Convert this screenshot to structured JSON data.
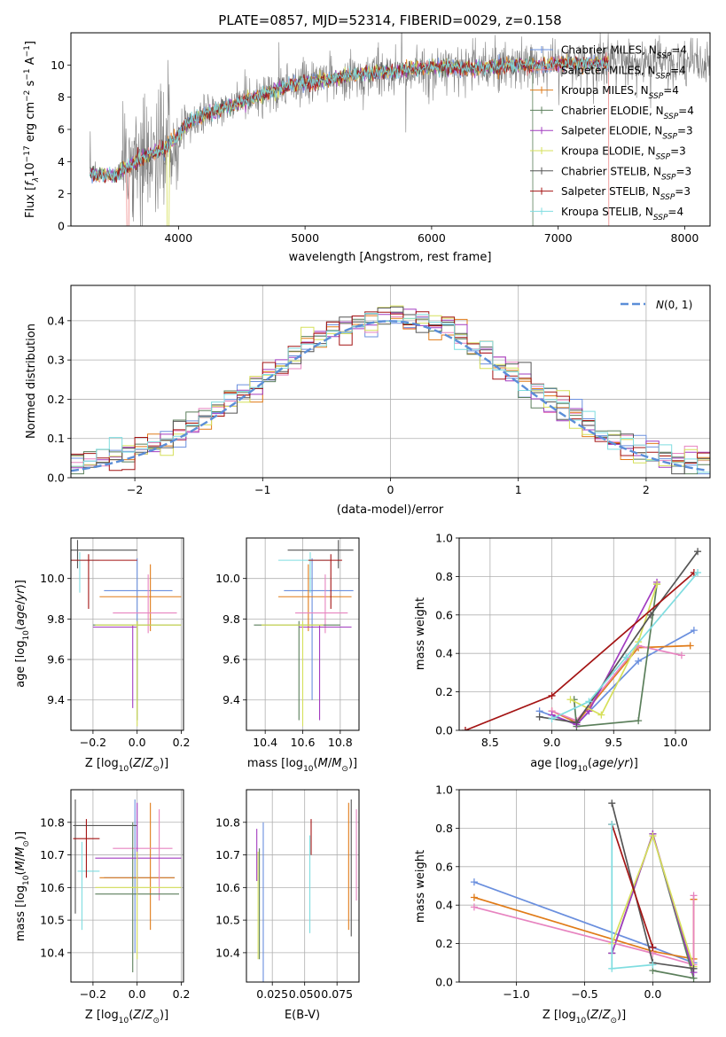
{
  "title": "PLATE=0857, MJD=52314, FIBERID=0029, z=0.158",
  "colors": {
    "Chabrier MILES": "#6a8fde",
    "Salpeter MILES": "#f08a8a",
    "Kroupa MILES": "#e07b18",
    "Chabrier ELODIE": "#5b7f5b",
    "Salpeter ELODIE": "#a23cc0",
    "Kroupa ELODIE": "#d6e05a",
    "Chabrier STELIB": "#555555",
    "Salpeter STELIB": "#a41414",
    "Kroupa STELIB": "#7fdde0",
    "MILES pink": "#e784c0",
    "data": "#808080",
    "normal": "#5b8ed8"
  },
  "chart_data": [
    {
      "id": "spectrum",
      "type": "line",
      "title": "PLATE=0857, MJD=52314, FIBERID=0029, z=0.158",
      "xlabel": "wavelength [Angstrom, rest frame]",
      "ylabel": "Flux [f_λ 10^-17 erg cm^-2 s^-1 A^-1]",
      "xlim": [
        3150,
        8200
      ],
      "ylim": [
        0,
        12
      ],
      "xticks": [
        4000,
        5000,
        6000,
        7000,
        8000
      ],
      "yticks": [
        0,
        2,
        4,
        6,
        8,
        10
      ],
      "continuum": [
        [
          3300,
          3.3
        ],
        [
          3500,
          3.1
        ],
        [
          3700,
          4.2
        ],
        [
          3900,
          4.8
        ],
        [
          4100,
          6.6
        ],
        [
          4300,
          7.2
        ],
        [
          4500,
          7.7
        ],
        [
          4700,
          8.3
        ],
        [
          4900,
          8.8
        ],
        [
          5100,
          9.0
        ],
        [
          5300,
          9.3
        ],
        [
          5500,
          9.5
        ],
        [
          5700,
          9.6
        ],
        [
          5900,
          9.8
        ],
        [
          6100,
          9.9
        ],
        [
          6300,
          9.8
        ],
        [
          6500,
          9.9
        ],
        [
          6700,
          10.0
        ],
        [
          6900,
          10.0
        ],
        [
          7100,
          10.1
        ],
        [
          7300,
          10.1
        ],
        [
          7450,
          10.2
        ]
      ],
      "series": [
        {
          "name": "Chabrier MILES",
          "nssp": "4"
        },
        {
          "name": "Salpeter MILES",
          "nssp": "4"
        },
        {
          "name": "Kroupa MILES",
          "nssp": "4"
        },
        {
          "name": "Chabrier ELODIE",
          "nssp": "4"
        },
        {
          "name": "Salpeter ELODIE",
          "nssp": "3"
        },
        {
          "name": "Kroupa ELODIE",
          "nssp": "3"
        },
        {
          "name": "Chabrier STELIB",
          "nssp": "3"
        },
        {
          "name": "Salpeter STELIB",
          "nssp": "3"
        },
        {
          "name": "Kroupa STELIB",
          "nssp": "4"
        }
      ],
      "legend": "upper-right"
    },
    {
      "id": "residual-hist",
      "type": "histogram",
      "xlabel": "(data-model)/error",
      "ylabel": "Normed distribution",
      "xlim": [
        -2.5,
        2.5
      ],
      "ylim": [
        0,
        0.49
      ],
      "xticks": [
        -2,
        -1,
        0,
        1,
        2
      ],
      "yticks": [
        0.0,
        0.1,
        0.2,
        0.3,
        0.4
      ],
      "bin_width": 0.1,
      "legend_label": "N(0,1)",
      "grid": true
    },
    {
      "id": "age-vs-Z",
      "type": "errorbar",
      "xlabel": "Z [log10(Z/Z⊙)]",
      "ylabel": "age [log10(age/yr)]",
      "xlim": [
        -0.3,
        0.21
      ],
      "ylim": [
        9.25,
        10.2
      ],
      "xticks": [
        -0.2,
        0.0,
        0.2
      ],
      "yticks": [
        9.4,
        9.6,
        9.8,
        10.0
      ],
      "points": [
        {
          "c": "Chabrier MILES",
          "x": 0.0,
          "xe": [
            -0.15,
            0.16
          ],
          "y": 9.94,
          "ye": [
            9.4,
            10.1
          ]
        },
        {
          "c": "Kroupa MILES",
          "x": 0.06,
          "xe": [
            -0.17,
            0.2
          ],
          "y": 9.91,
          "ye": [
            9.74,
            10.07
          ]
        },
        {
          "c": "MILES pink",
          "x": 0.05,
          "xe": [
            -0.11,
            0.18
          ],
          "y": 9.83,
          "ye": [
            9.73,
            10.02
          ]
        },
        {
          "c": "Kroupa STELIB",
          "x": -0.26,
          "xe": [
            -0.3,
            -0.17
          ],
          "y": 10.09,
          "ye": [
            9.93,
            10.13
          ]
        },
        {
          "c": "Chabrier STELIB",
          "x": -0.27,
          "xe": [
            -0.3,
            0.0
          ],
          "y": 10.14,
          "ye": [
            10.05,
            10.19
          ]
        },
        {
          "c": "Salpeter STELIB",
          "x": -0.22,
          "xe": [
            -0.3,
            0.0
          ],
          "y": 10.09,
          "ye": [
            9.85,
            10.12
          ]
        },
        {
          "c": "Chabrier ELODIE",
          "x": 0.0,
          "xe": [
            -0.2,
            0.2
          ],
          "y": 9.77,
          "ye": [
            9.3,
            9.79
          ]
        },
        {
          "c": "Salpeter ELODIE",
          "x": -0.02,
          "xe": [
            -0.2,
            0.0
          ],
          "y": 9.76,
          "ye": [
            9.36,
            9.77
          ]
        },
        {
          "c": "Kroupa ELODIE",
          "x": 0.0,
          "xe": [
            -0.19,
            0.2
          ],
          "y": 9.77,
          "ye": [
            9.27,
            9.79
          ]
        }
      ]
    },
    {
      "id": "age-vs-mass",
      "type": "errorbar",
      "xlabel": "mass [log10(M/M⊙)]",
      "xlim": [
        10.3,
        10.9
      ],
      "ylim": [
        9.25,
        10.2
      ],
      "xticks": [
        10.4,
        10.6,
        10.8
      ],
      "yticks": [
        9.4,
        9.6,
        9.8,
        10.0
      ],
      "points": [
        {
          "c": "Chabrier MILES",
          "x": 10.65,
          "xe": [
            10.5,
            10.87
          ],
          "y": 9.94,
          "ye": [
            9.4,
            10.1
          ]
        },
        {
          "c": "Kroupa MILES",
          "x": 10.63,
          "xe": [
            10.47,
            10.86
          ],
          "y": 9.91,
          "ye": [
            9.74,
            10.07
          ]
        },
        {
          "c": "MILES pink",
          "x": 10.72,
          "xe": [
            10.56,
            10.84
          ],
          "y": 9.83,
          "ye": [
            9.73,
            10.02
          ]
        },
        {
          "c": "Kroupa STELIB",
          "x": 10.64,
          "xe": [
            10.47,
            10.74
          ],
          "y": 10.09,
          "ye": [
            9.93,
            10.13
          ]
        },
        {
          "c": "Chabrier STELIB",
          "x": 10.79,
          "xe": [
            10.52,
            10.87
          ],
          "y": 10.14,
          "ye": [
            10.05,
            10.19
          ]
        },
        {
          "c": "Salpeter STELIB",
          "x": 10.75,
          "xe": [
            10.63,
            10.81
          ],
          "y": 10.09,
          "ye": [
            9.85,
            10.12
          ]
        },
        {
          "c": "Chabrier ELODIE",
          "x": 10.58,
          "xe": [
            10.34,
            10.8
          ],
          "y": 9.77,
          "ye": [
            9.3,
            9.79
          ]
        },
        {
          "c": "Salpeter ELODIE",
          "x": 10.69,
          "xe": [
            10.58,
            10.86
          ],
          "y": 9.76,
          "ye": [
            9.3,
            9.77
          ]
        },
        {
          "c": "Kroupa ELODIE",
          "x": 10.6,
          "xe": [
            10.38,
            10.71
          ],
          "y": 9.77,
          "ye": [
            9.27,
            9.79
          ]
        }
      ]
    },
    {
      "id": "massweight-vs-age",
      "type": "line",
      "xlabel": "age [log10(age/yr)]",
      "ylabel": "mass weight",
      "xlim": [
        8.25,
        10.28
      ],
      "ylim": [
        0,
        1.0
      ],
      "xticks": [
        8.5,
        9.0,
        9.5,
        10.0
      ],
      "yticks": [
        0.0,
        0.2,
        0.4,
        0.6,
        0.8,
        1.0
      ],
      "series": [
        {
          "c": "Chabrier MILES",
          "points": [
            [
              8.9,
              0.1
            ],
            [
              9.2,
              0.03
            ],
            [
              9.7,
              0.36
            ],
            [
              10.15,
              0.52
            ]
          ]
        },
        {
          "c": "Kroupa MILES",
          "points": [
            [
              9.0,
              0.1
            ],
            [
              9.2,
              0.04
            ],
            [
              9.7,
              0.43
            ],
            [
              10.12,
              0.44
            ]
          ]
        },
        {
          "c": "MILES pink",
          "points": [
            [
              9.0,
              0.1
            ],
            [
              9.2,
              0.05
            ],
            [
              9.7,
              0.44
            ],
            [
              10.05,
              0.39
            ]
          ]
        },
        {
          "c": "Chabrier ELODIE",
          "points": [
            [
              9.18,
              0.16
            ],
            [
              9.2,
              0.02
            ],
            [
              9.7,
              0.05
            ],
            [
              9.85,
              0.76
            ]
          ]
        },
        {
          "c": "Salpeter ELODIE",
          "points": [
            [
              9.0,
              0.08
            ],
            [
              9.2,
              0.03
            ],
            [
              9.3,
              0.1
            ],
            [
              9.85,
              0.77
            ]
          ]
        },
        {
          "c": "Kroupa ELODIE",
          "points": [
            [
              9.15,
              0.16
            ],
            [
              9.4,
              0.08
            ],
            [
              9.7,
              0.46
            ],
            [
              9.85,
              0.76
            ]
          ]
        },
        {
          "c": "Chabrier STELIB",
          "points": [
            [
              8.9,
              0.07
            ],
            [
              9.2,
              0.04
            ],
            [
              9.8,
              0.6
            ],
            [
              10.18,
              0.93
            ]
          ]
        },
        {
          "c": "Salpeter STELIB",
          "points": [
            [
              8.3,
              0.0
            ],
            [
              9.0,
              0.18
            ],
            [
              10.15,
              0.82
            ]
          ]
        },
        {
          "c": "Kroupa STELIB",
          "points": [
            [
              9.0,
              0.06
            ],
            [
              9.3,
              0.15
            ],
            [
              9.6,
              0.38
            ],
            [
              10.18,
              0.82
            ]
          ]
        }
      ],
      "grid": true
    },
    {
      "id": "mass-vs-Z",
      "type": "errorbar",
      "xlabel": "Z [log10(Z/Z⊙)]",
      "ylabel": "mass [log10(M/M⊙)]",
      "xlim": [
        -0.3,
        0.21
      ],
      "ylim": [
        10.31,
        10.9
      ],
      "xticks": [
        -0.2,
        0.0,
        0.2
      ],
      "yticks": [
        10.4,
        10.5,
        10.6,
        10.7,
        10.8
      ],
      "points": [
        {
          "c": "Chabrier MILES",
          "x": -0.01,
          "xe": [
            -0.15,
            0.17
          ],
          "y": 10.63,
          "ye": [
            10.4,
            10.87
          ]
        },
        {
          "c": "Kroupa MILES",
          "x": 0.06,
          "xe": [
            -0.17,
            0.17
          ],
          "y": 10.63,
          "ye": [
            10.47,
            10.86
          ]
        },
        {
          "c": "MILES pink",
          "x": 0.1,
          "xe": [
            -0.11,
            0.16
          ],
          "y": 10.72,
          "ye": [
            10.56,
            10.84
          ]
        },
        {
          "c": "Kroupa STELIB",
          "x": -0.25,
          "xe": [
            -0.27,
            -0.17
          ],
          "y": 10.65,
          "ye": [
            10.47,
            10.74
          ]
        },
        {
          "c": "Chabrier STELIB",
          "x": -0.28,
          "xe": [
            -0.29,
            0.0
          ],
          "y": 10.79,
          "ye": [
            10.52,
            10.87
          ]
        },
        {
          "c": "Salpeter STELIB",
          "x": -0.23,
          "xe": [
            -0.29,
            -0.17
          ],
          "y": 10.75,
          "ye": [
            10.63,
            10.81
          ]
        },
        {
          "c": "Chabrier ELODIE",
          "x": -0.02,
          "xe": [
            -0.19,
            0.19
          ],
          "y": 10.58,
          "ye": [
            10.34,
            10.8
          ]
        },
        {
          "c": "Salpeter ELODIE",
          "x": 0.0,
          "xe": [
            -0.19,
            0.2
          ],
          "y": 10.69,
          "ye": [
            10.58,
            10.86
          ]
        },
        {
          "c": "Kroupa ELODIE",
          "x": 0.0,
          "xe": [
            -0.19,
            0.2
          ],
          "y": 10.6,
          "ye": [
            10.38,
            10.71
          ]
        }
      ]
    },
    {
      "id": "mass-vs-ebv",
      "type": "errorbar",
      "xlabel": "E(B-V)",
      "xlim": [
        0.005,
        0.092
      ],
      "ylim": [
        10.31,
        10.9
      ],
      "xticks": [
        0.025,
        0.05,
        0.075
      ],
      "yticks": [
        10.4,
        10.5,
        10.6,
        10.7,
        10.8
      ],
      "points": [
        {
          "c": "Chabrier MILES",
          "x": 0.018,
          "y": 10.63,
          "ye": [
            10.31,
            10.8
          ]
        },
        {
          "c": "Salpeter ELODIE",
          "x": 0.013,
          "y": 10.69,
          "ye": [
            10.62,
            10.78
          ]
        },
        {
          "c": "Kroupa ELODIE",
          "x": 0.014,
          "y": 10.55,
          "ye": [
            10.38,
            10.71
          ]
        },
        {
          "c": "Chabrier ELODIE",
          "x": 0.015,
          "y": 10.55,
          "ye": [
            10.38,
            10.72
          ]
        },
        {
          "c": "Salpeter STELIB",
          "x": 0.055,
          "y": 10.75,
          "ye": [
            10.7,
            10.81
          ]
        },
        {
          "c": "Kroupa STELIB",
          "x": 0.054,
          "y": 10.62,
          "ye": [
            10.46,
            10.76
          ]
        },
        {
          "c": "Kroupa MILES",
          "x": 0.084,
          "y": 10.63,
          "ye": [
            10.47,
            10.86
          ]
        },
        {
          "c": "Chabrier STELIB",
          "x": 0.086,
          "y": 10.65,
          "ye": [
            10.45,
            10.87
          ]
        },
        {
          "c": "MILES pink",
          "x": 0.09,
          "y": 10.72,
          "ye": [
            10.56,
            10.84
          ]
        }
      ]
    },
    {
      "id": "massweight-vs-Z",
      "type": "line",
      "xlabel": "Z [log10(Z/Z⊙)]",
      "ylabel": "mass weight",
      "xlim": [
        -1.42,
        0.42
      ],
      "ylim": [
        0,
        1.0
      ],
      "xticks": [
        -1.0,
        -0.5,
        0.0
      ],
      "yticks": [
        0.0,
        0.2,
        0.4,
        0.6,
        0.8,
        1.0
      ],
      "series": [
        {
          "c": "Chabrier MILES",
          "points": [
            [
              -1.31,
              0.52
            ],
            [
              0.0,
              0.18
            ],
            [
              0.3,
              0.1
            ]
          ]
        },
        {
          "c": "Kroupa MILES",
          "points": [
            [
              -1.31,
              0.44
            ],
            [
              0.0,
              0.16
            ],
            [
              0.3,
              0.12
            ],
            [
              0.3,
              0.43
            ]
          ]
        },
        {
          "c": "MILES pink",
          "points": [
            [
              -1.31,
              0.39
            ],
            [
              0.0,
              0.15
            ],
            [
              0.3,
              0.09
            ],
            [
              0.3,
              0.45
            ]
          ]
        },
        {
          "c": "Chabrier ELODIE",
          "points": [
            [
              0.0,
              0.06
            ],
            [
              0.3,
              0.02
            ],
            [
              0.0,
              0.77
            ],
            [
              -0.3,
              0.15
            ]
          ]
        },
        {
          "c": "Salpeter ELODIE",
          "points": [
            [
              -0.3,
              0.15
            ],
            [
              0.0,
              0.77
            ],
            [
              0.3,
              0.05
            ]
          ]
        },
        {
          "c": "Kroupa ELODIE",
          "points": [
            [
              -0.3,
              0.2
            ],
            [
              0.0,
              0.76
            ],
            [
              0.3,
              0.08
            ]
          ]
        },
        {
          "c": "Chabrier STELIB",
          "points": [
            [
              -0.3,
              0.93
            ],
            [
              0.0,
              0.1
            ],
            [
              0.3,
              0.07
            ]
          ]
        },
        {
          "c": "Salpeter STELIB",
          "points": [
            [
              -0.3,
              0.82
            ],
            [
              0.0,
              0.18
            ]
          ]
        },
        {
          "c": "Kroupa STELIB",
          "points": [
            [
              -0.3,
              0.82
            ],
            [
              -0.3,
              0.07
            ],
            [
              0.0,
              0.09
            ]
          ]
        }
      ],
      "grid": true
    }
  ]
}
